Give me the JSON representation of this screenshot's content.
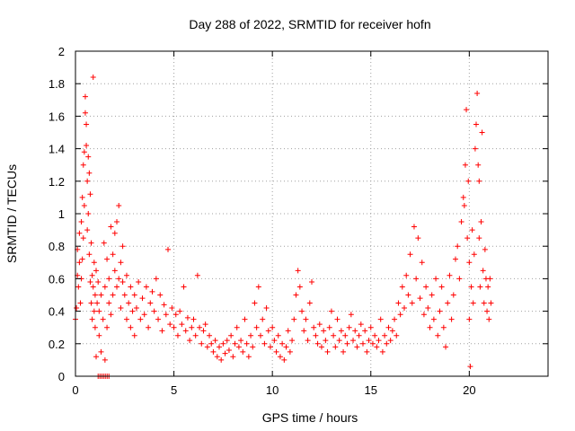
{
  "chart_data": {
    "type": "scatter",
    "title": "Day 288 of 2022, SRMTID for receiver hofn",
    "xlabel": "GPS time / hours",
    "ylabel": "SRMTID / TECUs",
    "xlim": [
      0,
      24
    ],
    "ylim": [
      0,
      2
    ],
    "xticks": [
      0,
      5,
      10,
      15,
      20
    ],
    "yticks": [
      0,
      0.2,
      0.4,
      0.6,
      0.8,
      1,
      1.2,
      1.4,
      1.6,
      1.8,
      2
    ],
    "grid": true,
    "marker": "+",
    "color": "#ff0000",
    "series": [
      {
        "name": "SRMTID",
        "points": [
          [
            0.0,
            0.35
          ],
          [
            0.05,
            0.42
          ],
          [
            0.1,
            0.62
          ],
          [
            0.1,
            0.78
          ],
          [
            0.15,
            0.55
          ],
          [
            0.2,
            0.7
          ],
          [
            0.2,
            0.88
          ],
          [
            0.25,
            0.45
          ],
          [
            0.3,
            0.6
          ],
          [
            0.3,
            0.95
          ],
          [
            0.35,
            1.1
          ],
          [
            0.35,
            0.72
          ],
          [
            0.4,
            1.3
          ],
          [
            0.4,
            0.85
          ],
          [
            0.45,
            1.38
          ],
          [
            0.45,
            1.05
          ],
          [
            0.5,
            1.62
          ],
          [
            0.5,
            1.72
          ],
          [
            0.55,
            1.55
          ],
          [
            0.55,
            1.42
          ],
          [
            0.6,
            1.2
          ],
          [
            0.6,
            0.9
          ],
          [
            0.65,
            1.35
          ],
          [
            0.65,
            1.0
          ],
          [
            0.7,
            0.75
          ],
          [
            0.7,
            1.25
          ],
          [
            0.75,
            0.58
          ],
          [
            0.75,
            1.12
          ],
          [
            0.8,
            0.45
          ],
          [
            0.8,
            0.82
          ],
          [
            0.85,
            0.62
          ],
          [
            0.85,
            0.35
          ],
          [
            0.9,
            1.84
          ],
          [
            0.9,
            0.55
          ],
          [
            0.95,
            0.7
          ],
          [
            0.95,
            0.4
          ],
          [
            1.0,
            0.3
          ],
          [
            1.0,
            0.5
          ],
          [
            1.05,
            0.12
          ],
          [
            1.05,
            0.65
          ],
          [
            1.1,
            0.45
          ],
          [
            1.15,
            0.58
          ],
          [
            1.2,
            0.25
          ],
          [
            1.2,
            0.4
          ],
          [
            1.3,
            0.15
          ],
          [
            1.3,
            0.5
          ],
          [
            1.4,
            0.35
          ],
          [
            1.45,
            0.82
          ],
          [
            1.5,
            0.1
          ],
          [
            1.5,
            0.55
          ],
          [
            1.6,
            0.3
          ],
          [
            1.6,
            0.72
          ],
          [
            1.7,
            0.45
          ],
          [
            1.7,
            0.6
          ],
          [
            1.8,
            0.38
          ],
          [
            1.8,
            0.92
          ],
          [
            1.9,
            0.5
          ],
          [
            1.9,
            0.75
          ],
          [
            2.0,
            0.65
          ],
          [
            2.0,
            0.88
          ],
          [
            2.1,
            0.55
          ],
          [
            2.1,
            0.95
          ],
          [
            2.2,
            0.6
          ],
          [
            2.2,
            1.05
          ],
          [
            2.3,
            0.7
          ],
          [
            2.3,
            0.42
          ],
          [
            2.4,
            0.58
          ],
          [
            2.4,
            0.8
          ],
          [
            2.5,
            0.5
          ],
          [
            2.6,
            0.35
          ],
          [
            2.6,
            0.62
          ],
          [
            2.7,
            0.45
          ],
          [
            2.8,
            0.3
          ],
          [
            2.8,
            0.55
          ],
          [
            2.9,
            0.4
          ],
          [
            3.0,
            0.25
          ],
          [
            3.0,
            0.5
          ],
          [
            3.1,
            0.42
          ],
          [
            3.2,
            0.58
          ],
          [
            3.3,
            0.35
          ],
          [
            3.4,
            0.48
          ],
          [
            3.5,
            0.38
          ],
          [
            3.6,
            0.55
          ],
          [
            3.7,
            0.3
          ],
          [
            3.8,
            0.45
          ],
          [
            3.9,
            0.52
          ],
          [
            4.0,
            0.4
          ],
          [
            4.1,
            0.6
          ],
          [
            4.2,
            0.35
          ],
          [
            4.3,
            0.5
          ],
          [
            4.4,
            0.28
          ],
          [
            4.5,
            0.44
          ],
          [
            4.6,
            0.38
          ],
          [
            4.7,
            0.78
          ],
          [
            4.8,
            0.32
          ],
          [
            4.9,
            0.42
          ],
          [
            5.0,
            0.3
          ],
          [
            5.1,
            0.38
          ],
          [
            5.2,
            0.25
          ],
          [
            5.3,
            0.4
          ],
          [
            5.4,
            0.32
          ],
          [
            5.5,
            0.55
          ],
          [
            5.6,
            0.28
          ],
          [
            5.7,
            0.36
          ],
          [
            5.8,
            0.22
          ],
          [
            5.9,
            0.3
          ],
          [
            6.0,
            0.35
          ],
          [
            6.1,
            0.25
          ],
          [
            6.2,
            0.62
          ],
          [
            6.3,
            0.3
          ],
          [
            6.4,
            0.2
          ],
          [
            6.5,
            0.28
          ],
          [
            6.6,
            0.32
          ],
          [
            6.7,
            0.18
          ],
          [
            6.8,
            0.25
          ],
          [
            6.9,
            0.2
          ],
          [
            7.0,
            0.15
          ],
          [
            7.1,
            0.22
          ],
          [
            7.2,
            0.12
          ],
          [
            7.3,
            0.18
          ],
          [
            7.4,
            0.1
          ],
          [
            7.5,
            0.2
          ],
          [
            7.6,
            0.14
          ],
          [
            7.7,
            0.22
          ],
          [
            7.8,
            0.16
          ],
          [
            7.9,
            0.25
          ],
          [
            8.0,
            0.12
          ],
          [
            8.1,
            0.2
          ],
          [
            8.2,
            0.3
          ],
          [
            8.3,
            0.18
          ],
          [
            8.4,
            0.22
          ],
          [
            8.5,
            0.15
          ],
          [
            8.6,
            0.35
          ],
          [
            8.7,
            0.2
          ],
          [
            8.8,
            0.12
          ],
          [
            8.9,
            0.25
          ],
          [
            9.0,
            0.18
          ],
          [
            9.1,
            0.45
          ],
          [
            9.2,
            0.3
          ],
          [
            9.3,
            0.55
          ],
          [
            9.4,
            0.25
          ],
          [
            9.5,
            0.35
          ],
          [
            9.6,
            0.2
          ],
          [
            9.7,
            0.42
          ],
          [
            9.8,
            0.28
          ],
          [
            9.9,
            0.18
          ],
          [
            10.0,
            0.3
          ],
          [
            10.1,
            0.22
          ],
          [
            10.2,
            0.15
          ],
          [
            10.3,
            0.25
          ],
          [
            10.4,
            0.12
          ],
          [
            10.5,
            0.2
          ],
          [
            10.6,
            0.1
          ],
          [
            10.7,
            0.18
          ],
          [
            10.8,
            0.28
          ],
          [
            10.9,
            0.15
          ],
          [
            11.0,
            0.22
          ],
          [
            11.1,
            0.35
          ],
          [
            11.2,
            0.5
          ],
          [
            11.3,
            0.65
          ],
          [
            11.4,
            0.55
          ],
          [
            11.5,
            0.4
          ],
          [
            11.6,
            0.28
          ],
          [
            11.7,
            0.35
          ],
          [
            11.8,
            0.22
          ],
          [
            11.9,
            0.45
          ],
          [
            12.0,
            0.58
          ],
          [
            12.1,
            0.3
          ],
          [
            12.2,
            0.25
          ],
          [
            12.3,
            0.2
          ],
          [
            12.4,
            0.32
          ],
          [
            12.5,
            0.18
          ],
          [
            12.6,
            0.28
          ],
          [
            12.7,
            0.22
          ],
          [
            12.8,
            0.15
          ],
          [
            12.9,
            0.3
          ],
          [
            13.0,
            0.4
          ],
          [
            13.1,
            0.25
          ],
          [
            13.2,
            0.18
          ],
          [
            13.3,
            0.35
          ],
          [
            13.4,
            0.22
          ],
          [
            13.5,
            0.28
          ],
          [
            13.6,
            0.15
          ],
          [
            13.7,
            0.25
          ],
          [
            13.8,
            0.2
          ],
          [
            13.9,
            0.3
          ],
          [
            14.0,
            0.38
          ],
          [
            14.1,
            0.22
          ],
          [
            14.2,
            0.28
          ],
          [
            14.3,
            0.18
          ],
          [
            14.4,
            0.25
          ],
          [
            14.5,
            0.32
          ],
          [
            14.6,
            0.2
          ],
          [
            14.7,
            0.28
          ],
          [
            14.8,
            0.15
          ],
          [
            14.9,
            0.22
          ],
          [
            15.0,
            0.3
          ],
          [
            15.1,
            0.2
          ],
          [
            15.2,
            0.25
          ],
          [
            15.3,
            0.18
          ],
          [
            15.4,
            0.22
          ],
          [
            15.5,
            0.35
          ],
          [
            15.6,
            0.15
          ],
          [
            15.7,
            0.25
          ],
          [
            15.8,
            0.2
          ],
          [
            15.9,
            0.3
          ],
          [
            16.0,
            0.22
          ],
          [
            16.1,
            0.28
          ],
          [
            16.2,
            0.35
          ],
          [
            16.3,
            0.25
          ],
          [
            16.4,
            0.45
          ],
          [
            16.5,
            0.38
          ],
          [
            16.6,
            0.55
          ],
          [
            16.7,
            0.42
          ],
          [
            16.8,
            0.62
          ],
          [
            16.9,
            0.5
          ],
          [
            17.0,
            0.75
          ],
          [
            17.1,
            0.45
          ],
          [
            17.2,
            0.92
          ],
          [
            17.3,
            0.6
          ],
          [
            17.4,
            0.85
          ],
          [
            17.5,
            0.48
          ],
          [
            17.6,
            0.7
          ],
          [
            17.7,
            0.38
          ],
          [
            17.8,
            0.55
          ],
          [
            17.9,
            0.42
          ],
          [
            18.0,
            0.3
          ],
          [
            18.1,
            0.5
          ],
          [
            18.2,
            0.35
          ],
          [
            18.3,
            0.6
          ],
          [
            18.4,
            0.25
          ],
          [
            18.5,
            0.4
          ],
          [
            18.6,
            0.55
          ],
          [
            18.7,
            0.3
          ],
          [
            18.8,
            0.18
          ],
          [
            18.9,
            0.45
          ],
          [
            19.0,
            0.62
          ],
          [
            19.1,
            0.35
          ],
          [
            19.2,
            0.5
          ],
          [
            19.3,
            0.72
          ],
          [
            19.4,
            0.8
          ],
          [
            19.5,
            0.6
          ],
          [
            19.6,
            0.95
          ],
          [
            19.7,
            1.1
          ],
          [
            19.75,
            1.05
          ],
          [
            19.8,
            1.3
          ],
          [
            19.85,
            1.64
          ],
          [
            19.9,
            0.85
          ],
          [
            19.95,
            1.2
          ],
          [
            20.0,
            0.7
          ],
          [
            20.0,
            0.35
          ],
          [
            20.05,
            0.06
          ],
          [
            20.1,
            0.55
          ],
          [
            20.15,
            0.9
          ],
          [
            20.2,
            0.45
          ],
          [
            20.25,
            0.75
          ],
          [
            20.3,
            1.4
          ],
          [
            20.35,
            1.55
          ],
          [
            20.4,
            1.74
          ],
          [
            20.45,
            1.3
          ],
          [
            20.5,
            1.2
          ],
          [
            20.5,
            0.85
          ],
          [
            20.55,
            0.55
          ],
          [
            20.6,
            0.95
          ],
          [
            20.65,
            1.5
          ],
          [
            20.7,
            0.65
          ],
          [
            20.75,
            0.45
          ],
          [
            20.8,
            0.78
          ],
          [
            20.85,
            0.6
          ],
          [
            20.9,
            0.4
          ],
          [
            20.95,
            0.55
          ],
          [
            21.0,
            0.35
          ],
          [
            21.05,
            0.6
          ],
          [
            21.1,
            0.45
          ]
        ],
        "zero_run": [
          1.15,
          1.75
        ]
      }
    ]
  }
}
